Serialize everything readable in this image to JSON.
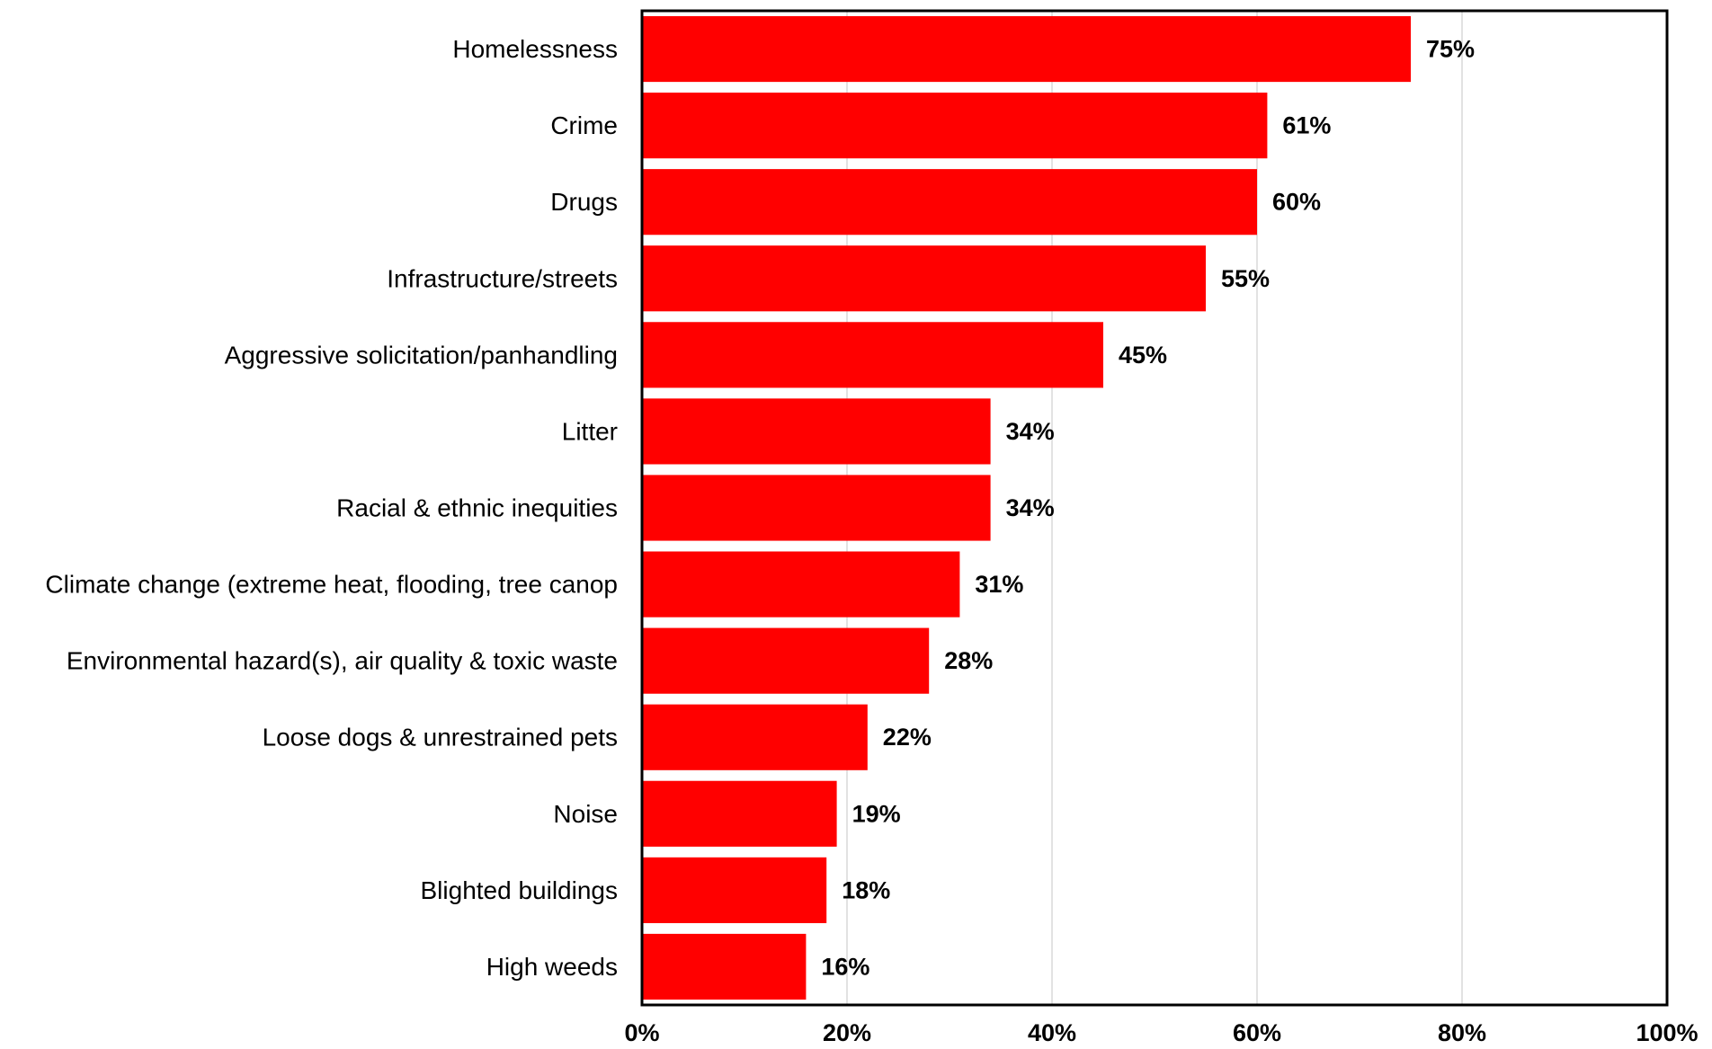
{
  "chart_data": {
    "type": "bar",
    "orientation": "horizontal",
    "categories": [
      "Homelessness",
      "Crime",
      "Drugs",
      "Infrastructure/streets",
      "Aggressive solicitation/panhandling",
      "Litter",
      "Racial & ethnic inequities",
      "Climate change (extreme heat, flooding, tree canop",
      "Environmental hazard(s), air quality & toxic waste",
      "Loose dogs & unrestrained pets",
      "Noise",
      "Blighted buildings",
      "High weeds"
    ],
    "values": [
      75,
      61,
      60,
      55,
      45,
      34,
      34,
      31,
      28,
      22,
      19,
      18,
      16
    ],
    "value_labels": [
      "75%",
      "61%",
      "60%",
      "55%",
      "45%",
      "34%",
      "34%",
      "31%",
      "28%",
      "22%",
      "19%",
      "18%",
      "16%"
    ],
    "xlim": [
      0,
      100
    ],
    "xticks": [
      0,
      20,
      40,
      60,
      80,
      100
    ],
    "xtick_labels": [
      "0%",
      "20%",
      "40%",
      "60%",
      "80%",
      "100%"
    ],
    "title": "",
    "xlabel": "",
    "ylabel": "",
    "grid": "vertical",
    "legend": "none",
    "bar_color": "#ff0000",
    "grid_color": "#d9d9d9",
    "axis_color": "#000000"
  }
}
